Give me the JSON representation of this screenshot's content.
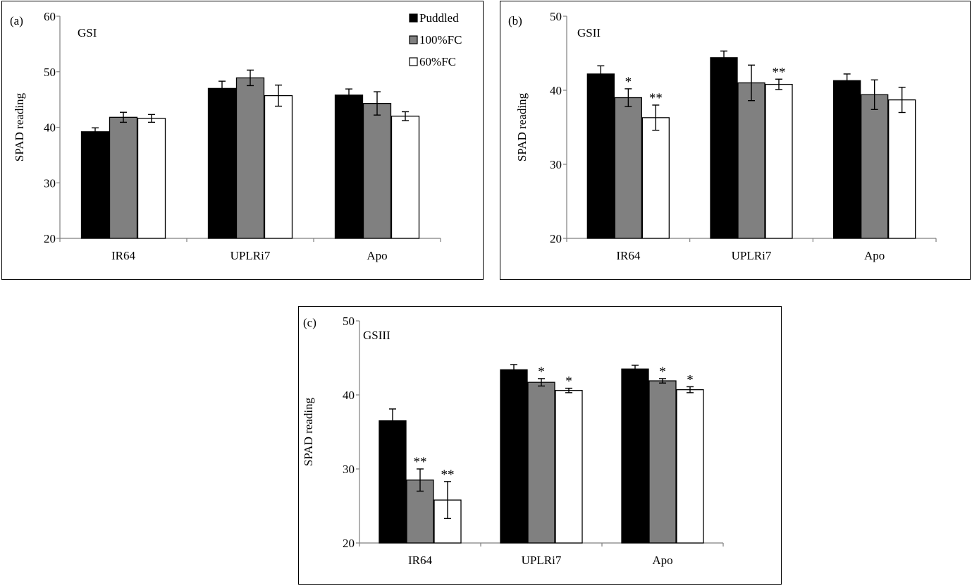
{
  "chart_data": [
    {
      "type": "bar",
      "panel_label": "(a)",
      "title": "GSI",
      "ylabel": "SPAD reading",
      "ylim": [
        20,
        60
      ],
      "yticks": [
        20,
        30,
        40,
        50,
        60
      ],
      "categories": [
        "IR64",
        "UPLRi7",
        "Apo"
      ],
      "series": [
        {
          "name": "Puddled",
          "color": "#000000",
          "values": [
            39.2,
            47.0,
            45.8
          ],
          "errors": [
            0.7,
            1.3,
            1.1
          ],
          "significance": [
            "",
            "",
            ""
          ]
        },
        {
          "name": "100%FC",
          "color": "#808080",
          "values": [
            41.8,
            48.9,
            44.3
          ],
          "errors": [
            0.9,
            1.4,
            2.1
          ],
          "significance": [
            "",
            "",
            ""
          ]
        },
        {
          "name": "60%FC",
          "color": "#ffffff",
          "values": [
            41.6,
            45.7,
            42.0
          ],
          "errors": [
            0.7,
            1.9,
            0.8
          ],
          "significance": [
            "",
            "",
            ""
          ]
        }
      ],
      "legend": "top-right"
    },
    {
      "type": "bar",
      "panel_label": "(b)",
      "title": "GSII",
      "ylabel": "SPAD reading",
      "ylim": [
        20,
        50
      ],
      "yticks": [
        20,
        30,
        40,
        50
      ],
      "categories": [
        "IR64",
        "UPLRi7",
        "Apo"
      ],
      "series": [
        {
          "name": "Puddled",
          "color": "#000000",
          "values": [
            42.2,
            44.4,
            41.3
          ],
          "errors": [
            1.1,
            0.9,
            0.9
          ],
          "significance": [
            "",
            "",
            ""
          ]
        },
        {
          "name": "100%FC",
          "color": "#808080",
          "values": [
            39.0,
            41.0,
            39.4
          ],
          "errors": [
            1.2,
            2.4,
            2.0
          ],
          "significance": [
            "*",
            "",
            ""
          ]
        },
        {
          "name": "60%FC",
          "color": "#ffffff",
          "values": [
            36.3,
            40.8,
            38.7
          ],
          "errors": [
            1.7,
            0.7,
            1.7
          ],
          "significance": [
            "**",
            "**",
            ""
          ]
        }
      ]
    },
    {
      "type": "bar",
      "panel_label": "(c)",
      "title": "GSIII",
      "ylabel": "SPAD reading",
      "ylim": [
        20,
        50
      ],
      "yticks": [
        20,
        30,
        40,
        50
      ],
      "categories": [
        "IR64",
        "UPLRi7",
        "Apo"
      ],
      "series": [
        {
          "name": "Puddled",
          "color": "#000000",
          "values": [
            36.5,
            43.4,
            43.5
          ],
          "errors": [
            1.6,
            0.7,
            0.5
          ],
          "significance": [
            "",
            "",
            ""
          ]
        },
        {
          "name": "100%FC",
          "color": "#808080",
          "values": [
            28.5,
            41.7,
            41.9
          ],
          "errors": [
            1.5,
            0.5,
            0.3
          ],
          "significance": [
            "**",
            "*",
            "*"
          ]
        },
        {
          "name": "60%FC",
          "color": "#ffffff",
          "values": [
            25.8,
            40.6,
            40.7
          ],
          "errors": [
            2.5,
            0.3,
            0.4
          ],
          "significance": [
            "**",
            "*",
            "*"
          ]
        }
      ]
    }
  ]
}
